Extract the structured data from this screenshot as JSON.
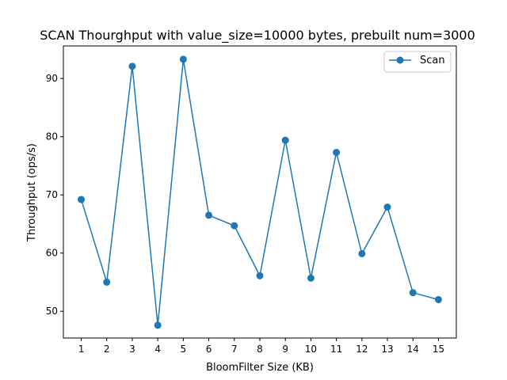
{
  "chart_data": {
    "type": "line",
    "title": "SCAN Thourghput with value_size=10000 bytes, prebuilt num=3000",
    "xlabel": "BloomFilter Size (KB)",
    "ylabel": "Throughput (ops/s)",
    "x": [
      1,
      2,
      3,
      4,
      5,
      6,
      7,
      8,
      9,
      10,
      11,
      12,
      13,
      14,
      15
    ],
    "xticks": [
      "1",
      "2",
      "3",
      "4",
      "5",
      "6",
      "7",
      "8",
      "9",
      "10",
      "11",
      "12",
      "13",
      "14",
      "15"
    ],
    "yticks": [
      50,
      60,
      70,
      80,
      90
    ],
    "xlim": [
      0.3,
      15.7
    ],
    "ylim": [
      45.4,
      95.6
    ],
    "grid": false,
    "legend_position": "upper right",
    "series": [
      {
        "name": "Scan",
        "color": "#1f77b4",
        "marker": "circle",
        "values": [
          69.2,
          55.0,
          92.1,
          47.6,
          93.3,
          66.5,
          64.7,
          56.1,
          79.4,
          55.7,
          77.3,
          59.9,
          67.9,
          53.2,
          52.0
        ]
      }
    ]
  }
}
